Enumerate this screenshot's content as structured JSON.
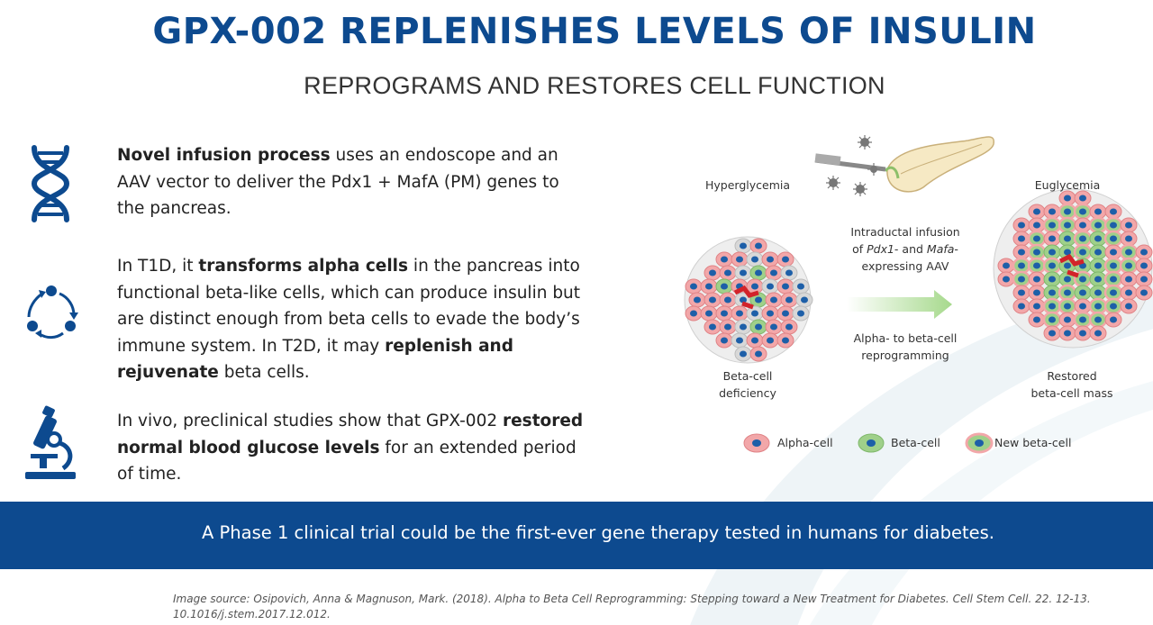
{
  "header": {
    "title": "GPX-002 REPLENISHES LEVELS OF INSULIN",
    "subtitle": "REPROGRAMS AND RESTORES CELL FUNCTION"
  },
  "points": [
    {
      "icon": "dna-icon",
      "bold": "Novel infusion process",
      "text": " uses an endoscope and an AAV vector to deliver the Pdx1 + MafA (PM) genes to the pancreas."
    },
    {
      "icon": "cycle-arrows-icon",
      "pre": "In T1D, it ",
      "bold": "transforms alpha cells",
      "mid": " in the pancreas into functional beta-like cells, which can produce insulin but are distinct enough from beta cells to evade the body’s immune system. In T2D, it may ",
      "bold2": "replenish and rejuvenate",
      "post": " beta cells."
    },
    {
      "icon": "microscope-icon",
      "pre": "In vivo, preclinical studies show that GPX-002 ",
      "bold": "restored normal blood glucose levels",
      "post": " for an extended period of time."
    }
  ],
  "figure": {
    "hyperglycemia": "Hyperglycemia",
    "euglycemia": "Euglycemia",
    "infusion_line1": "Intraductal infusion",
    "infusion_line2_pre": "of ",
    "infusion_gene1": "Pdx1",
    "infusion_line2_mid": "- and ",
    "infusion_gene2": "Mafa",
    "infusion_line2_post": "-",
    "infusion_line3": "expressing AAV",
    "reprog_line1": "Alpha- to beta-cell",
    "reprog_line2": "reprogramming",
    "deficiency_line1": "Beta-cell",
    "deficiency_line2": "deficiency",
    "restored_line1": "Restored",
    "restored_line2": "beta-cell mass",
    "legend": {
      "alpha": "Alpha-cell",
      "beta": "Beta-cell",
      "new_beta": "New beta-cell"
    },
    "colors": {
      "alpha": "#f2a7a9",
      "beta": "#9fd08a",
      "nucleus": "#1d5fa8",
      "arrow": "#a6d98c",
      "vessel": "#d2232a"
    }
  },
  "banner": {
    "text": "A Phase 1 clinical trial could be the first-ever gene therapy tested in humans for diabetes."
  },
  "source": {
    "text": "Image source: Osipovich, Anna & Magnuson, Mark. (2018). Alpha to Beta Cell Reprogramming: Stepping toward a New Treatment for Diabetes. Cell Stem Cell. 22. 12-13. 10.1016/j.stem.2017.12.012."
  },
  "theme": {
    "brand": "#0d4a8f"
  }
}
